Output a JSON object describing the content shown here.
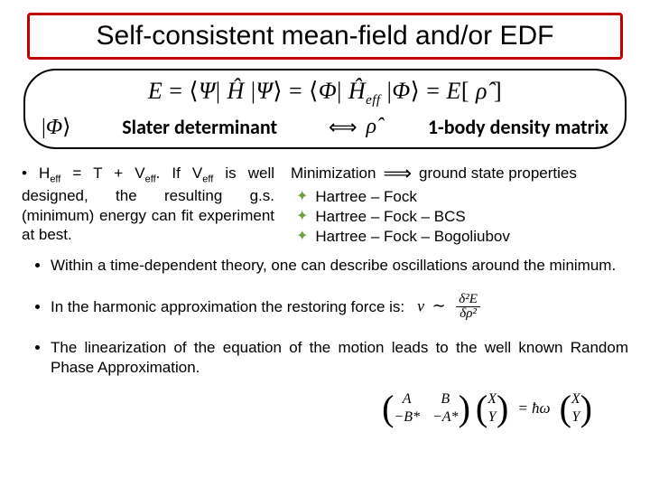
{
  "title": "Self-consistent mean-field and/or EDF",
  "capsule": {
    "main_equation": "E = ⟨Ψ| Ĥ |Ψ⟩ = ⟨Φ| Ĥ_eff |Φ⟩ = E[ ρ̂ ]",
    "phi_ket": "|Φ⟩",
    "slater_label": "Slater determinant",
    "arrow": "⟺",
    "rho": "ρ̂",
    "density_label": "1-body density matrix"
  },
  "left_block": {
    "text_prefix": "• H",
    "sub1": "eff",
    "mid1": " = T + V",
    "sub2": "eff",
    "mid2": ". If V",
    "sub3": "eff",
    "text_suffix": " is well designed, the resulting g.s. (minimum) energy can fit experiment at best."
  },
  "right_block": {
    "minimization": "Minimization",
    "arrow": "⟹",
    "gs": "ground state properties",
    "items": [
      "Hartree – Fock",
      "Hartree – Fock – BCS",
      "Hartree – Fock – Bogoliubov"
    ]
  },
  "points": {
    "p1": "Within a time-dependent theory, one can describe oscillations around the minimum.",
    "p2_text": "In the harmonic approximation the restoring force is:",
    "p2_eq_lhs": "v",
    "p2_tilde": "∼",
    "p2_frac_num": "δ²E",
    "p2_frac_den": "δρ²",
    "p3": "The linearization of the equation of the motion leads to the well known Random Phase Approximation."
  },
  "matrix": {
    "m11": "A",
    "m12": "B",
    "m21": "−B*",
    "m22": "−A*",
    "v1": "X",
    "v2": "Y",
    "eq": "= ħω",
    "w1": "X",
    "w2": "Y"
  },
  "colors": {
    "title_border": "#c00000",
    "star": "#70a040"
  }
}
